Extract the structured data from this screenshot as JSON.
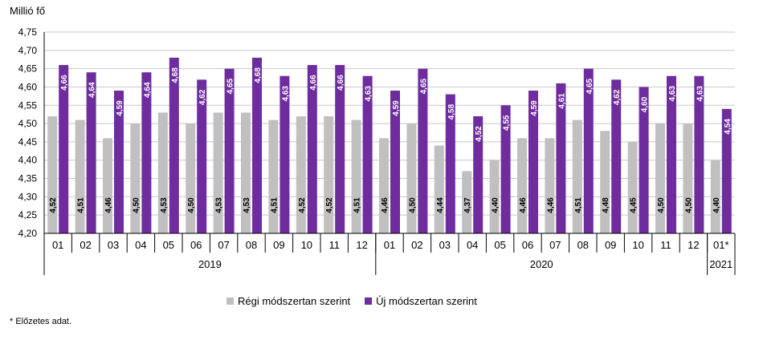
{
  "chart_data": {
    "type": "bar",
    "ylabel": "Millió fő",
    "ylim": [
      4.2,
      4.75
    ],
    "yticks": [
      "4,20",
      "4,25",
      "4,30",
      "4,35",
      "4,40",
      "4,45",
      "4,50",
      "4,55",
      "4,60",
      "4,65",
      "4,70",
      "4,75"
    ],
    "grid": true,
    "legend_position": "bottom",
    "categories": [
      "01",
      "02",
      "03",
      "04",
      "05",
      "06",
      "07",
      "08",
      "09",
      "10",
      "11",
      "12",
      "01",
      "02",
      "03",
      "04",
      "05",
      "06",
      "07",
      "08",
      "09",
      "10",
      "11",
      "12",
      "01*"
    ],
    "groups": [
      {
        "label": "2019",
        "count": 12
      },
      {
        "label": "2020",
        "count": 12
      },
      {
        "label": "2021",
        "count": 1
      }
    ],
    "series": [
      {
        "name": "Régi módszertan szerint",
        "color": "#c0c0c0",
        "values": [
          4.52,
          4.51,
          4.46,
          4.5,
          4.53,
          4.5,
          4.53,
          4.53,
          4.51,
          4.52,
          4.52,
          4.51,
          4.46,
          4.5,
          4.44,
          4.37,
          4.4,
          4.46,
          4.46,
          4.51,
          4.48,
          4.45,
          4.5,
          4.5,
          4.4
        ],
        "labels": [
          "4,52",
          "4,51",
          "4,46",
          "4,50",
          "4,53",
          "4,50",
          "4,53",
          "4,53",
          "4,51",
          "4,52",
          "4,52",
          "4,51",
          "4,46",
          "4,50",
          "4,44",
          "4,37",
          "4,40",
          "4,46",
          "4,46",
          "4,51",
          "4,48",
          "4,45",
          "4,50",
          "4,50",
          "4,40"
        ]
      },
      {
        "name": "Új módszertan szerint",
        "color": "#6f2c9e",
        "values": [
          4.66,
          4.64,
          4.59,
          4.64,
          4.68,
          4.62,
          4.65,
          4.68,
          4.63,
          4.66,
          4.66,
          4.63,
          4.59,
          4.65,
          4.58,
          4.52,
          4.55,
          4.59,
          4.61,
          4.65,
          4.62,
          4.6,
          4.63,
          4.63,
          4.54
        ],
        "labels": [
          "4,66",
          "4,64",
          "4,59",
          "4,64",
          "4,68",
          "4,62",
          "4,65",
          "4,68",
          "4,63",
          "4,66",
          "4,66",
          "4,63",
          "4,59",
          "4,65",
          "4,58",
          "4,52",
          "4,55",
          "4,59",
          "4,61",
          "4,65",
          "4,62",
          "4,60",
          "4,63",
          "4,63",
          "4,54"
        ]
      }
    ]
  },
  "footnote": "* Előzetes adat."
}
